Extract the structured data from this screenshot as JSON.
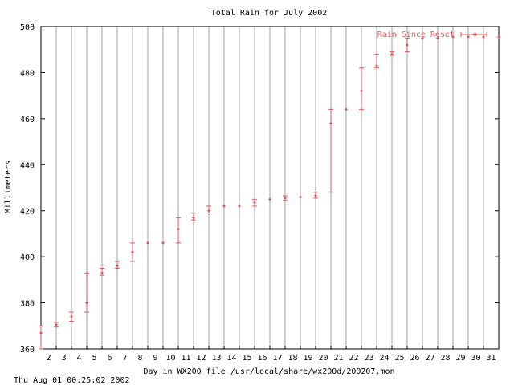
{
  "chart_data": {
    "type": "scatter",
    "title": "Total Rain for July 2002",
    "xlabel": "Day in WX200 file /usr/local/share/wx200d/200207.mon",
    "ylabel": "Millimeters",
    "footer": "Thu Aug 01 00:25:02 2002",
    "xlim": [
      1.5,
      31.5
    ],
    "ylim": [
      360,
      500
    ],
    "x_ticks": [
      2,
      3,
      4,
      5,
      6,
      7,
      8,
      9,
      10,
      11,
      12,
      13,
      14,
      15,
      16,
      17,
      18,
      19,
      20,
      21,
      22,
      23,
      24,
      25,
      26,
      27,
      28,
      29,
      30,
      31
    ],
    "y_ticks": [
      360,
      380,
      400,
      420,
      440,
      460,
      480,
      500
    ],
    "grid": true,
    "legend": "top-right",
    "colors": {
      "series": "#e05a5a",
      "grid": "#a0a0a0",
      "axis": "#000000"
    },
    "series": [
      {
        "name": "Rain Since Reset",
        "points": [
          {
            "x": 1.5,
            "y": 367,
            "min": 360,
            "max": 370
          },
          {
            "x": 2.5,
            "y": 370.5,
            "min": 369.5,
            "max": 371.5
          },
          {
            "x": 3.5,
            "y": 374,
            "min": 372,
            "max": 376
          },
          {
            "x": 4.5,
            "y": 380,
            "min": 376,
            "max": 393
          },
          {
            "x": 5.5,
            "y": 393,
            "min": 392,
            "max": 395
          },
          {
            "x": 6.5,
            "y": 396,
            "min": 395,
            "max": 398
          },
          {
            "x": 7.5,
            "y": 402,
            "min": 398,
            "max": 406
          },
          {
            "x": 8.5,
            "y": 406
          },
          {
            "x": 9.5,
            "y": 406
          },
          {
            "x": 10.5,
            "y": 412,
            "min": 406,
            "max": 417
          },
          {
            "x": 11.5,
            "y": 417,
            "min": 416,
            "max": 419
          },
          {
            "x": 12.5,
            "y": 420,
            "min": 419,
            "max": 422
          },
          {
            "x": 13.5,
            "y": 422
          },
          {
            "x": 14.5,
            "y": 422
          },
          {
            "x": 15.5,
            "y": 423.5,
            "min": 422,
            "max": 425
          },
          {
            "x": 16.5,
            "y": 425
          },
          {
            "x": 17.5,
            "y": 425.5,
            "min": 424.5,
            "max": 426.5
          },
          {
            "x": 18.5,
            "y": 426
          },
          {
            "x": 19.5,
            "y": 426.5,
            "min": 425.5,
            "max": 428
          },
          {
            "x": 20.5,
            "y": 458,
            "min": 428,
            "max": 464
          },
          {
            "x": 21.5,
            "y": 464
          },
          {
            "x": 22.5,
            "y": 472,
            "min": 464,
            "max": 482
          },
          {
            "x": 23.5,
            "y": 483,
            "min": 482,
            "max": 488
          },
          {
            "x": 24.5,
            "y": 488,
            "min": 487.5,
            "max": 489
          },
          {
            "x": 25.5,
            "y": 492,
            "min": 489,
            "max": 495
          },
          {
            "x": 26.5,
            "y": 495
          },
          {
            "x": 27.5,
            "y": 495
          },
          {
            "x": 28.5,
            "y": 495.5
          },
          {
            "x": 29.5,
            "y": 495.5
          },
          {
            "x": 30,
            "y": 496.5
          },
          {
            "x": 30.5,
            "y": 495.5
          },
          {
            "x": 31.5,
            "y": 495.5
          }
        ]
      }
    ]
  }
}
